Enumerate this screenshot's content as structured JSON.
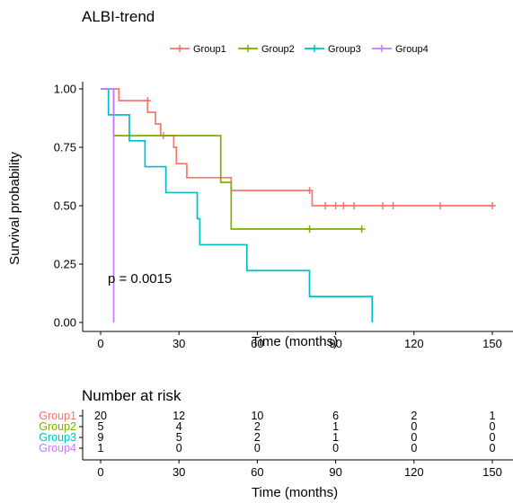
{
  "chart_data": {
    "type": "line",
    "subtype": "kaplan-meier",
    "title": "ALBI-trend",
    "xlabel": "Time (months)",
    "ylabel": "Survival probability",
    "xlim": [
      0,
      150
    ],
    "ylim": [
      0,
      1
    ],
    "x_ticks": [
      0,
      30,
      60,
      90,
      120,
      150
    ],
    "y_ticks": [
      0,
      0.25,
      0.5,
      0.75,
      1
    ],
    "y_tick_labels": [
      "0.00",
      "0.25",
      "0.50",
      "0.75",
      "1.00"
    ],
    "x_tick_labels": [
      "0",
      "30",
      "60",
      "90",
      "120",
      "150"
    ],
    "legend_position": "top",
    "grid": false,
    "annotation": "p = 0.0015",
    "series": [
      {
        "name": "Group1",
        "color": "#F8766D",
        "steps": [
          [
            0,
            1.0
          ],
          [
            7,
            0.95
          ],
          [
            18,
            0.9
          ],
          [
            21,
            0.85
          ],
          [
            23,
            0.8
          ],
          [
            28,
            0.75
          ],
          [
            29,
            0.68
          ],
          [
            33,
            0.62
          ],
          [
            50,
            0.565
          ],
          [
            81,
            0.5
          ],
          [
            150,
            0.5
          ]
        ],
        "censor": [
          [
            18,
            0.95
          ],
          [
            24,
            0.8
          ],
          [
            80,
            0.565
          ],
          [
            86,
            0.5
          ],
          [
            90,
            0.5
          ],
          [
            93,
            0.5
          ],
          [
            97,
            0.5
          ],
          [
            108,
            0.5
          ],
          [
            112,
            0.5
          ],
          [
            130,
            0.5
          ],
          [
            150,
            0.5
          ]
        ]
      },
      {
        "name": "Group2",
        "color": "#7CAE00",
        "steps": [
          [
            0,
            1.0
          ],
          [
            5,
            0.8
          ],
          [
            46,
            0.6
          ],
          [
            50,
            0.4
          ],
          [
            100,
            0.4
          ]
        ],
        "censor": [
          [
            80,
            0.4
          ],
          [
            100,
            0.4
          ]
        ]
      },
      {
        "name": "Group3",
        "color": "#00BFC4",
        "steps": [
          [
            0,
            1.0
          ],
          [
            3,
            0.889
          ],
          [
            11,
            0.778
          ],
          [
            17,
            0.667
          ],
          [
            25,
            0.556
          ],
          [
            37,
            0.444
          ],
          [
            38,
            0.333
          ],
          [
            56,
            0.222
          ],
          [
            80,
            0.111
          ],
          [
            104,
            0.0
          ]
        ],
        "censor": []
      },
      {
        "name": "Group4",
        "color": "#C77CFF",
        "steps": [
          [
            0,
            1.0
          ],
          [
            5,
            0.0
          ]
        ],
        "censor": []
      }
    ],
    "risk_table": {
      "title": "Number at risk",
      "xlabel": "Time (months)",
      "times": [
        0,
        30,
        60,
        90,
        120,
        150
      ],
      "rows": [
        {
          "name": "Group1",
          "color": "#F8766D",
          "values": [
            "20",
            "12",
            "10",
            "6",
            "2",
            "1"
          ]
        },
        {
          "name": "Group2",
          "color": "#7CAE00",
          "values": [
            "5",
            "4",
            "2",
            "1",
            "0",
            "0"
          ]
        },
        {
          "name": "Group3",
          "color": "#00BFC4",
          "values": [
            "9",
            "5",
            "2",
            "1",
            "0",
            "0"
          ]
        },
        {
          "name": "Group4",
          "color": "#C77CFF",
          "values": [
            "1",
            "0",
            "0",
            "0",
            "0",
            "0"
          ]
        }
      ]
    }
  }
}
